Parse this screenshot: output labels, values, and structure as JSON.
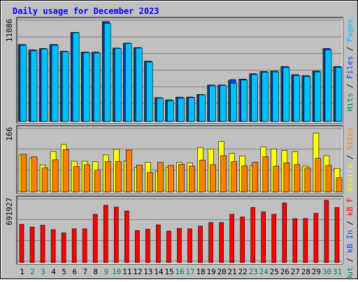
{
  "colors": {
    "background": "#c0c0c0",
    "plot_background": "#ffffff",
    "grid": "#808080",
    "title": "#0000ff",
    "axis_max": "#000000",
    "hits": "#00805c",
    "files": "#0040ff",
    "pages": "#00c0ff",
    "visits": "#ffff00",
    "sites": "#ff8000",
    "kb_out": "#00805c",
    "kb_in": "#0040ff",
    "kb_f": "#ff0000",
    "weekend_day": "#00805c",
    "weekday": "#000000"
  },
  "chart_data": {
    "type": "bar",
    "title": "Daily usage for December 2023",
    "x": [
      "1",
      "2",
      "3",
      "4",
      "5",
      "6",
      "7",
      "8",
      "9",
      "10",
      "11",
      "12",
      "13",
      "14",
      "15",
      "16",
      "17",
      "18",
      "19",
      "20",
      "21",
      "22",
      "23",
      "24",
      "25",
      "26",
      "27",
      "28",
      "29",
      "30",
      "31"
    ],
    "weekend_days": [
      "2",
      "3",
      "9",
      "10",
      "16",
      "17",
      "23",
      "24",
      "30",
      "31"
    ],
    "panels": [
      {
        "name": "requests",
        "max_label": "11086",
        "ylim": [
          0,
          11086
        ],
        "legend": [
          {
            "label": "Hits",
            "color": "#00805c"
          },
          {
            "label": "Files",
            "color": "#0040ff"
          },
          {
            "label": "Pages",
            "color": "#00c0ff"
          }
        ],
        "series": [
          {
            "name": "Hits",
            "color": "#00805c",
            "values": [
              8550,
              7950,
              8100,
              8550,
              7800,
              9900,
              7700,
              7700,
              11086,
              8150,
              8700,
              8200,
              6700,
              2650,
              2400,
              2700,
              2700,
              3000,
              4050,
              4050,
              4550,
              4700,
              5300,
              5550,
              5600,
              6100,
              5200,
              5100,
              5600,
              8100,
              6100
            ]
          },
          {
            "name": "Files",
            "color": "#0040ff",
            "values": [
              8550,
              7950,
              8100,
              8550,
              7800,
              9900,
              7700,
              7700,
              11086,
              8150,
              8700,
              8200,
              6700,
              2650,
              2400,
              2700,
              2700,
              3000,
              4050,
              4050,
              4650,
              4700,
              5300,
              5550,
              5600,
              6100,
              5200,
              5100,
              5600,
              8100,
              6100
            ]
          },
          {
            "name": "Pages",
            "color": "#00c0ff",
            "values": [
              8450,
              7850,
              8050,
              8450,
              7750,
              9850,
              7650,
              7600,
              10900,
              8100,
              8650,
              8150,
              6600,
              2600,
              2300,
              2600,
              2650,
              2950,
              3950,
              4000,
              4250,
              4600,
              5200,
              5450,
              5500,
              6000,
              5100,
              5000,
              5500,
              7950,
              6000
            ]
          }
        ]
      },
      {
        "name": "visitors",
        "max_label": "166",
        "ylim": [
          0,
          166
        ],
        "legend": [
          {
            "label": "Visits",
            "color": "#ffff00"
          },
          {
            "label": "Sites",
            "color": "#ff8000"
          }
        ],
        "series": [
          {
            "name": "Visits",
            "color": "#ffff00",
            "values": [
              99,
              90,
              72,
              108,
              127,
              82,
              82,
              81,
              99,
              114,
              83,
              66,
              79,
              55,
              66,
              79,
              77,
              119,
              115,
              135,
              103,
              96,
              71,
              120,
              115,
              111,
              108,
              69,
              157,
              97,
              63
            ]
          },
          {
            "name": "Sites",
            "color": "#ff8000",
            "values": [
              101,
              94,
              64,
              86,
              113,
              68,
              73,
              58,
              81,
              81,
              112,
              72,
              52,
              79,
              71,
              74,
              69,
              85,
              73,
              97,
              81,
              70,
              79,
              94,
              69,
              78,
              73,
              64,
              90,
              71,
              38
            ]
          }
        ]
      },
      {
        "name": "volume",
        "max_label": "691927",
        "ylim": [
          0,
          691927
        ],
        "legend": [
          {
            "label": "kB Out",
            "color": "#00805c"
          },
          {
            "label": "kB In",
            "color": "#0040ff"
          },
          {
            "label": "kB F",
            "color": "#ff0000"
          }
        ],
        "series": [
          {
            "name": "kB F",
            "color": "#ff0000",
            "values": [
              425000,
              395000,
              415000,
              365000,
              330000,
              375000,
              375000,
              537000,
              637000,
              617000,
              574000,
              355000,
              370000,
              420000,
              350000,
              380000,
              375000,
              405000,
              445000,
              445000,
              537000,
              507000,
              612000,
              563000,
              537000,
              663000,
              487000,
              490000,
              547000,
              691927,
              612000
            ]
          }
        ]
      }
    ]
  }
}
